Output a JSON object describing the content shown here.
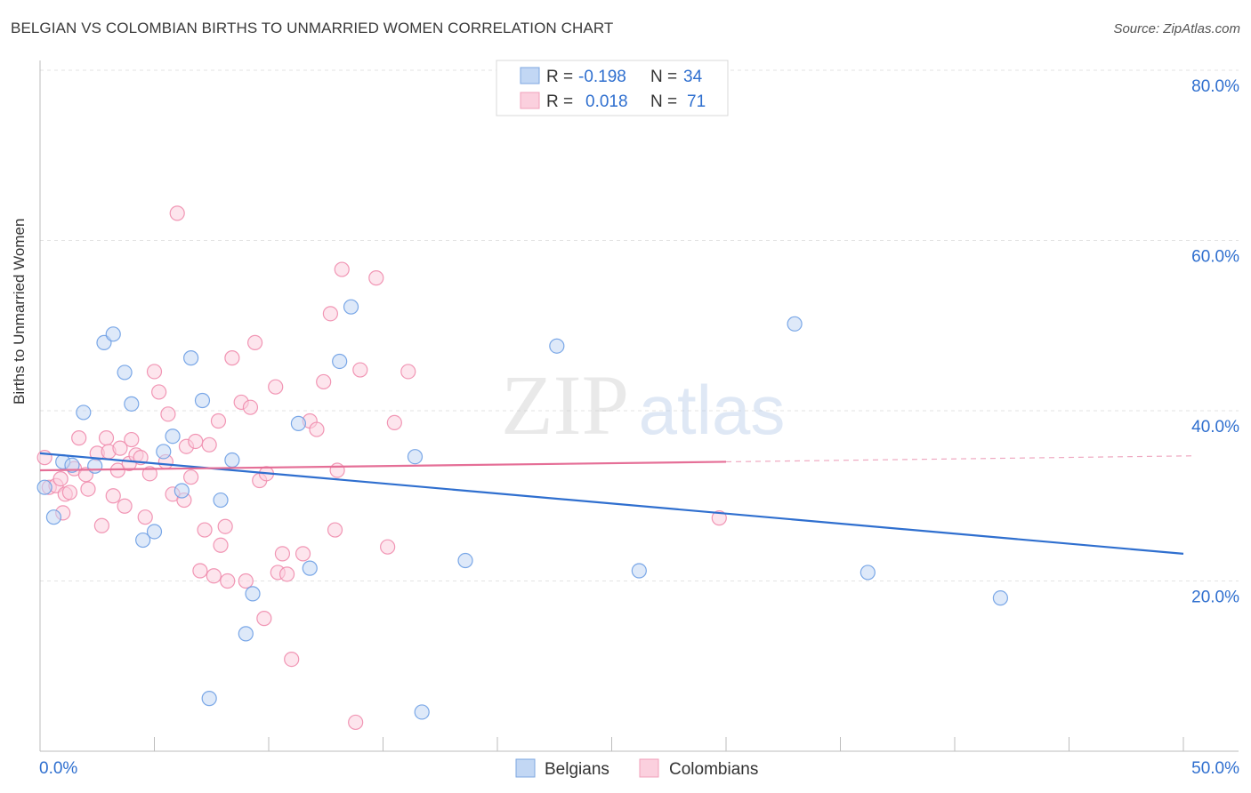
{
  "title": "BELGIAN VS COLOMBIAN BIRTHS TO UNMARRIED WOMEN CORRELATION CHART",
  "source": "Source: ZipAtlas.com",
  "watermark": {
    "zip": "ZIP",
    "atlas": "atlas"
  },
  "chart_data": {
    "type": "scatter",
    "xlabel": "",
    "ylabel": "Births to Unmarried Women",
    "xlim": [
      0,
      50
    ],
    "ylim": [
      0,
      80
    ],
    "x_tick_labels": [
      "0.0%",
      "50.0%"
    ],
    "y_ticks": [
      20,
      40,
      60,
      80
    ],
    "y_tick_labels": [
      "20.0%",
      "40.0%",
      "60.0%",
      "80.0%"
    ],
    "grid": true,
    "legend_position": "top-center",
    "bottom_legend": [
      "Belgians",
      "Colombians"
    ],
    "stats": [
      {
        "series": "Belgians",
        "r_label": "R =",
        "r": "-0.198",
        "n_label": "N =",
        "n": "34"
      },
      {
        "series": "Colombians",
        "r_label": "R =",
        "r": "0.018",
        "n_label": "N =",
        "n": "71"
      }
    ],
    "series": [
      {
        "name": "Belgians",
        "color": "#6d9fe4",
        "line_color": "#2f6fcf",
        "trend": {
          "x": [
            0,
            50
          ],
          "y": [
            35.0,
            23.2
          ]
        },
        "points": [
          [
            0.2,
            31.0
          ],
          [
            0.6,
            27.5
          ],
          [
            1.0,
            34.0
          ],
          [
            1.4,
            33.6
          ],
          [
            1.9,
            39.8
          ],
          [
            2.4,
            33.5
          ],
          [
            2.8,
            48.0
          ],
          [
            3.2,
            49.0
          ],
          [
            3.7,
            44.5
          ],
          [
            4.0,
            40.8
          ],
          [
            4.5,
            24.8
          ],
          [
            5.0,
            25.8
          ],
          [
            5.4,
            35.2
          ],
          [
            5.8,
            37.0
          ],
          [
            6.2,
            30.6
          ],
          [
            6.6,
            46.2
          ],
          [
            7.1,
            41.2
          ],
          [
            7.4,
            6.2
          ],
          [
            7.9,
            29.5
          ],
          [
            8.4,
            34.2
          ],
          [
            9.0,
            13.8
          ],
          [
            9.3,
            18.5
          ],
          [
            11.3,
            38.5
          ],
          [
            11.8,
            21.5
          ],
          [
            13.1,
            45.8
          ],
          [
            13.6,
            52.2
          ],
          [
            16.4,
            34.6
          ],
          [
            16.7,
            4.6
          ],
          [
            18.6,
            22.4
          ],
          [
            22.6,
            47.6
          ],
          [
            26.2,
            21.2
          ],
          [
            33.0,
            50.2
          ],
          [
            36.2,
            21.0
          ],
          [
            42.0,
            18.0
          ]
        ]
      },
      {
        "name": "Colombians",
        "color": "#f08cad",
        "line_color": "#e56f97",
        "trend": {
          "x": [
            0,
            30
          ],
          "y": [
            33.0,
            34.0
          ]
        },
        "trend_dashed": {
          "x": [
            30,
            50
          ],
          "y": [
            34.0,
            34.7
          ]
        },
        "points": [
          [
            0.2,
            34.5
          ],
          [
            0.4,
            31.0
          ],
          [
            0.7,
            31.2
          ],
          [
            0.9,
            32.0
          ],
          [
            1.0,
            28.0
          ],
          [
            1.1,
            30.2
          ],
          [
            1.3,
            30.4
          ],
          [
            1.5,
            33.2
          ],
          [
            1.7,
            36.8
          ],
          [
            2.0,
            32.5
          ],
          [
            2.1,
            30.8
          ],
          [
            2.5,
            35.0
          ],
          [
            2.7,
            26.5
          ],
          [
            2.9,
            36.8
          ],
          [
            3.0,
            35.2
          ],
          [
            3.2,
            30.0
          ],
          [
            3.4,
            33.0
          ],
          [
            3.5,
            35.6
          ],
          [
            3.7,
            28.8
          ],
          [
            3.9,
            33.8
          ],
          [
            4.0,
            36.6
          ],
          [
            4.2,
            34.8
          ],
          [
            4.4,
            34.5
          ],
          [
            4.6,
            27.5
          ],
          [
            4.8,
            32.6
          ],
          [
            5.0,
            44.6
          ],
          [
            5.2,
            42.2
          ],
          [
            5.5,
            34.0
          ],
          [
            5.6,
            39.6
          ],
          [
            5.8,
            30.2
          ],
          [
            6.0,
            63.2
          ],
          [
            6.3,
            29.5
          ],
          [
            6.4,
            35.8
          ],
          [
            6.6,
            32.2
          ],
          [
            6.8,
            36.4
          ],
          [
            7.0,
            21.2
          ],
          [
            7.2,
            26.0
          ],
          [
            7.4,
            36.0
          ],
          [
            7.6,
            20.6
          ],
          [
            7.8,
            38.8
          ],
          [
            7.9,
            24.2
          ],
          [
            8.1,
            26.4
          ],
          [
            8.2,
            20.0
          ],
          [
            8.4,
            46.2
          ],
          [
            8.8,
            41.0
          ],
          [
            9.0,
            20.0
          ],
          [
            9.2,
            40.4
          ],
          [
            9.4,
            48.0
          ],
          [
            9.6,
            31.8
          ],
          [
            9.8,
            15.6
          ],
          [
            9.9,
            32.6
          ],
          [
            10.3,
            42.8
          ],
          [
            10.4,
            21.0
          ],
          [
            10.6,
            23.2
          ],
          [
            10.8,
            20.8
          ],
          [
            11.0,
            10.8
          ],
          [
            11.5,
            23.2
          ],
          [
            11.8,
            38.8
          ],
          [
            12.1,
            37.8
          ],
          [
            12.4,
            43.4
          ],
          [
            12.7,
            51.4
          ],
          [
            12.9,
            26.0
          ],
          [
            13.0,
            33.0
          ],
          [
            13.2,
            56.6
          ],
          [
            13.8,
            3.4
          ],
          [
            14.0,
            44.8
          ],
          [
            14.7,
            55.6
          ],
          [
            15.2,
            24.0
          ],
          [
            15.5,
            38.6
          ],
          [
            16.1,
            44.6
          ],
          [
            29.7,
            27.4
          ]
        ]
      }
    ]
  }
}
